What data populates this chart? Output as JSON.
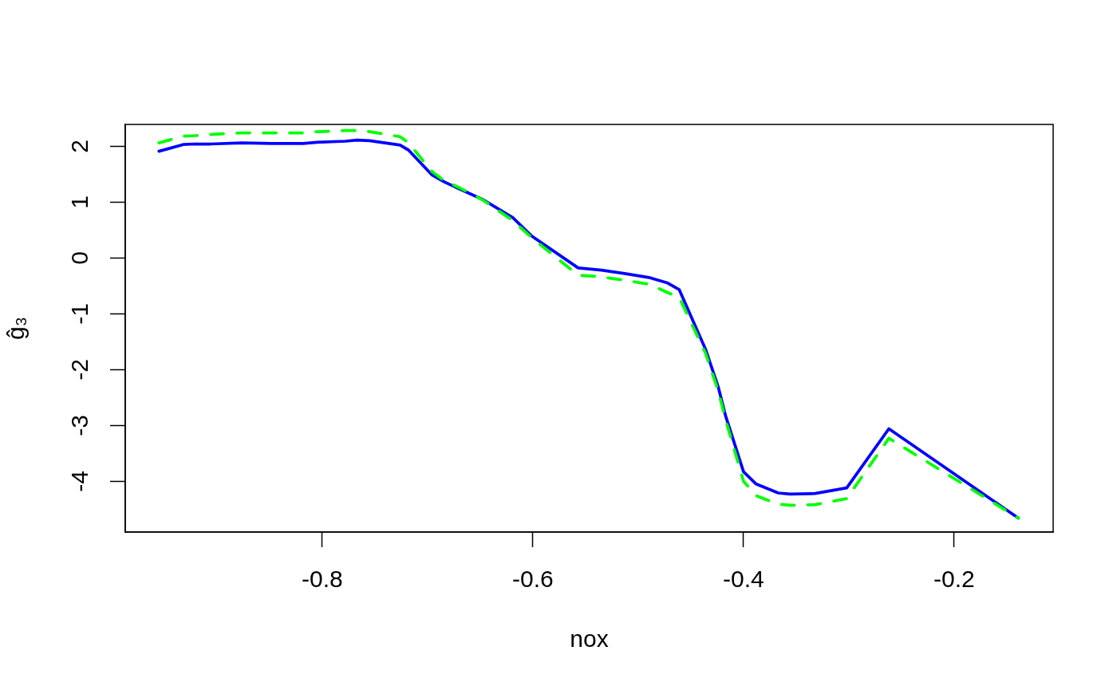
{
  "chart_data": {
    "type": "line",
    "xlabel": "nox",
    "ylabel": "ĝ₃",
    "xlim": [
      -0.987,
      -0.106
    ],
    "xticks": [
      -0.8,
      -0.6,
      -0.4,
      -0.2
    ],
    "ylim": [
      -4.91,
      2.39
    ],
    "yticks": [
      -4,
      -3,
      -2,
      -1,
      0,
      1,
      2
    ],
    "marker": "none",
    "legend": false,
    "x": [
      -0.955,
      -0.932,
      -0.921,
      -0.906,
      -0.876,
      -0.848,
      -0.818,
      -0.805,
      -0.778,
      -0.767,
      -0.755,
      -0.726,
      -0.718,
      -0.696,
      -0.684,
      -0.669,
      -0.647,
      -0.619,
      -0.601,
      -0.557,
      -0.535,
      -0.513,
      -0.49,
      -0.472,
      -0.461,
      -0.436,
      -0.424,
      -0.417,
      -0.4,
      -0.388,
      -0.367,
      -0.356,
      -0.332,
      -0.302,
      -0.262,
      -0.139
    ],
    "series": [
      {
        "color": "#0000ff",
        "line_style": "solid",
        "values": [
          1.91,
          2.03,
          2.04,
          2.04,
          2.06,
          2.05,
          2.05,
          2.07,
          2.09,
          2.11,
          2.1,
          2.02,
          1.93,
          1.49,
          1.36,
          1.23,
          1.04,
          0.72,
          0.39,
          -0.18,
          -0.22,
          -0.28,
          -0.35,
          -0.45,
          -0.57,
          -1.64,
          -2.31,
          -2.83,
          -3.83,
          -4.05,
          -4.21,
          -4.23,
          -4.22,
          -4.12,
          -3.06,
          -4.66
        ]
      },
      {
        "color": "#00ff00",
        "line_style": "dashed",
        "values": [
          2.06,
          2.18,
          2.19,
          2.21,
          2.24,
          2.24,
          2.24,
          2.26,
          2.28,
          2.28,
          2.26,
          2.17,
          2.06,
          1.55,
          1.38,
          1.25,
          1.03,
          0.67,
          0.36,
          -0.31,
          -0.34,
          -0.4,
          -0.47,
          -0.62,
          -0.71,
          -1.71,
          -2.38,
          -2.9,
          -4.0,
          -4.26,
          -4.41,
          -4.43,
          -4.42,
          -4.31,
          -3.23,
          -4.66
        ]
      }
    ]
  }
}
